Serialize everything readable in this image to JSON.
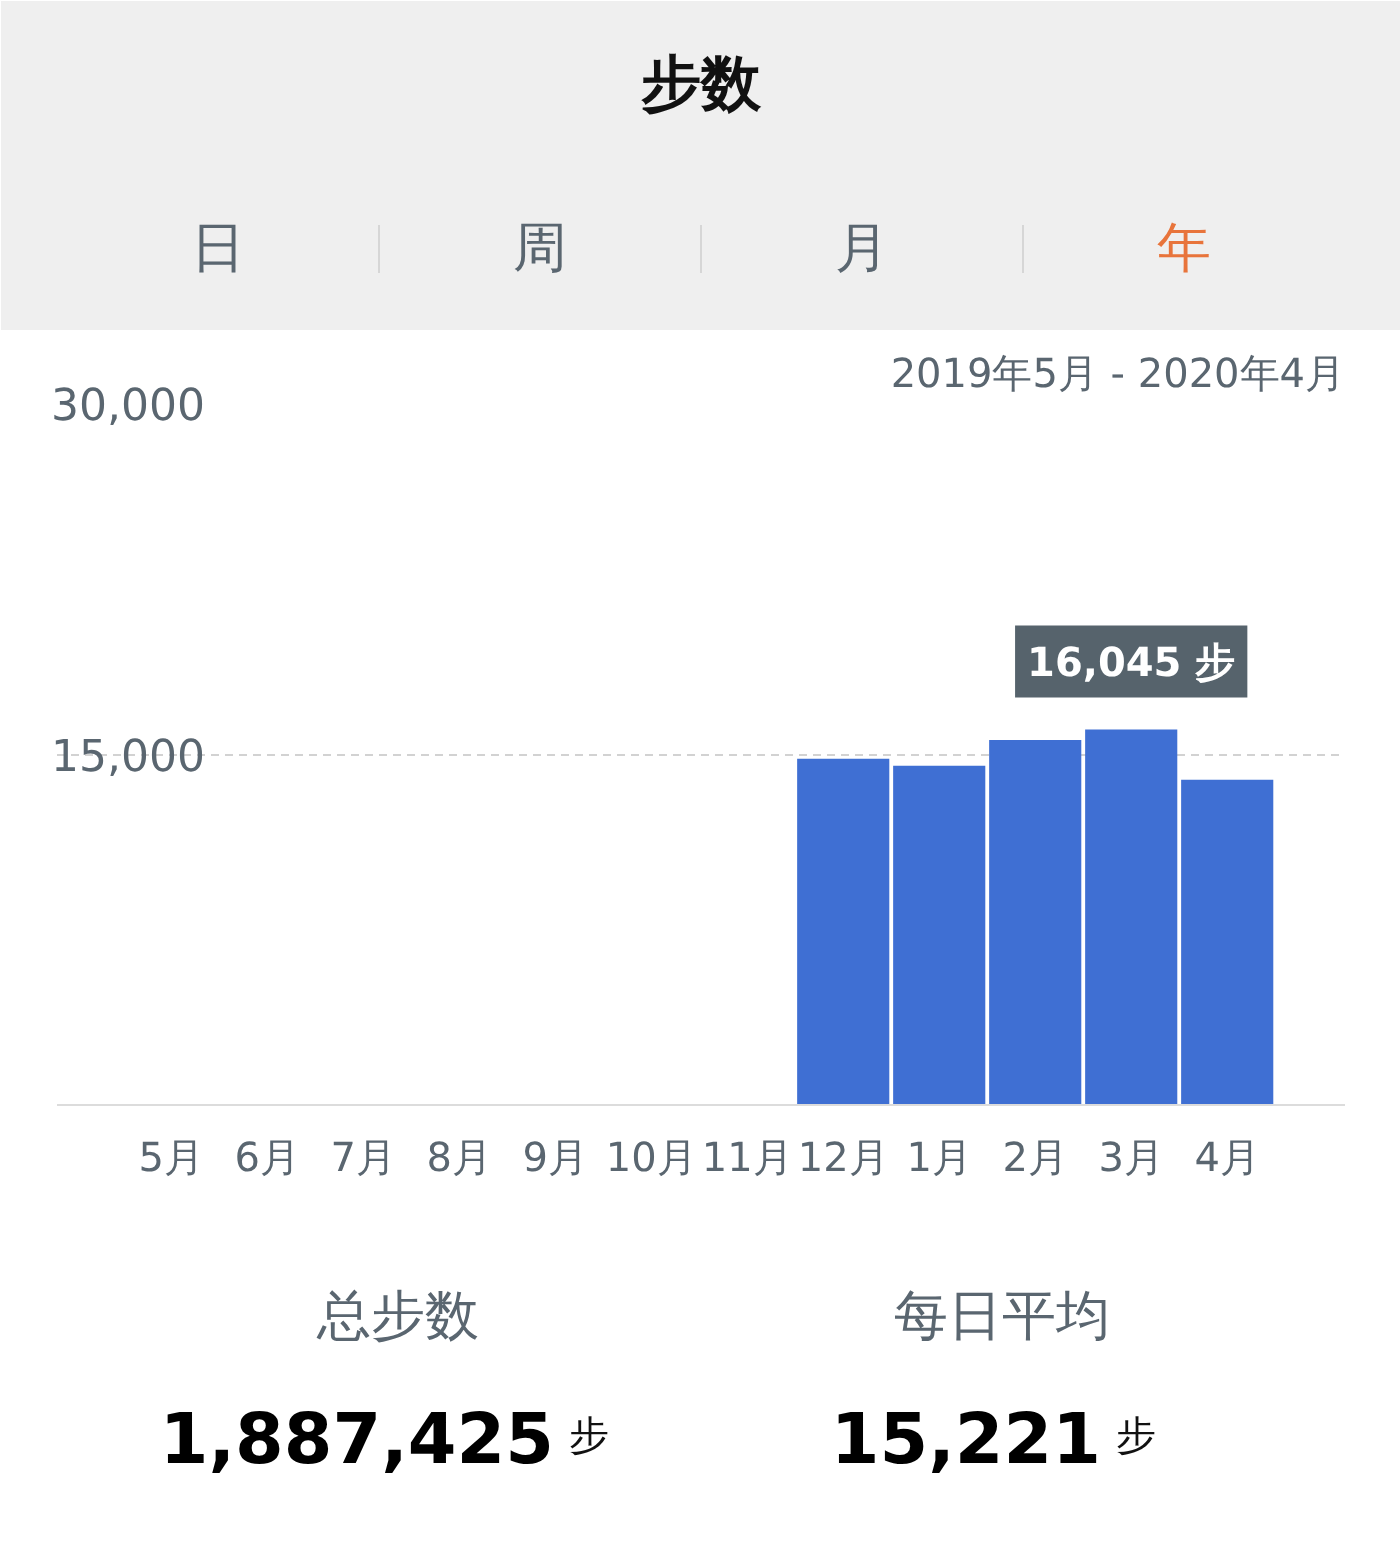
{
  "chart_data": {
    "type": "bar",
    "title": "步数",
    "subtitle": "2019年5月 - 2020年4月",
    "categories": [
      "5月",
      "6月",
      "7月",
      "8月",
      "9月",
      "10月",
      "11月",
      "12月",
      "1月",
      "2月",
      "3月",
      "4月"
    ],
    "values": [
      null,
      null,
      null,
      null,
      null,
      null,
      null,
      14800,
      14500,
      15600,
      16045,
      13900
    ],
    "color": "#3f6fd3",
    "ylim": [
      0,
      30000
    ],
    "yticks": [
      {
        "value": 15000,
        "label": "15,000"
      },
      {
        "value": 30000,
        "label": "30,000"
      }
    ],
    "grid": "y",
    "annotations": [
      {
        "text": "16,045 步",
        "x": "3月",
        "y": 16045
      },
      "日",
      "周",
      "月",
      "年",
      "总步数",
      "1,887,425 步",
      "每日平均",
      "15,221 步"
    ]
  }
}
